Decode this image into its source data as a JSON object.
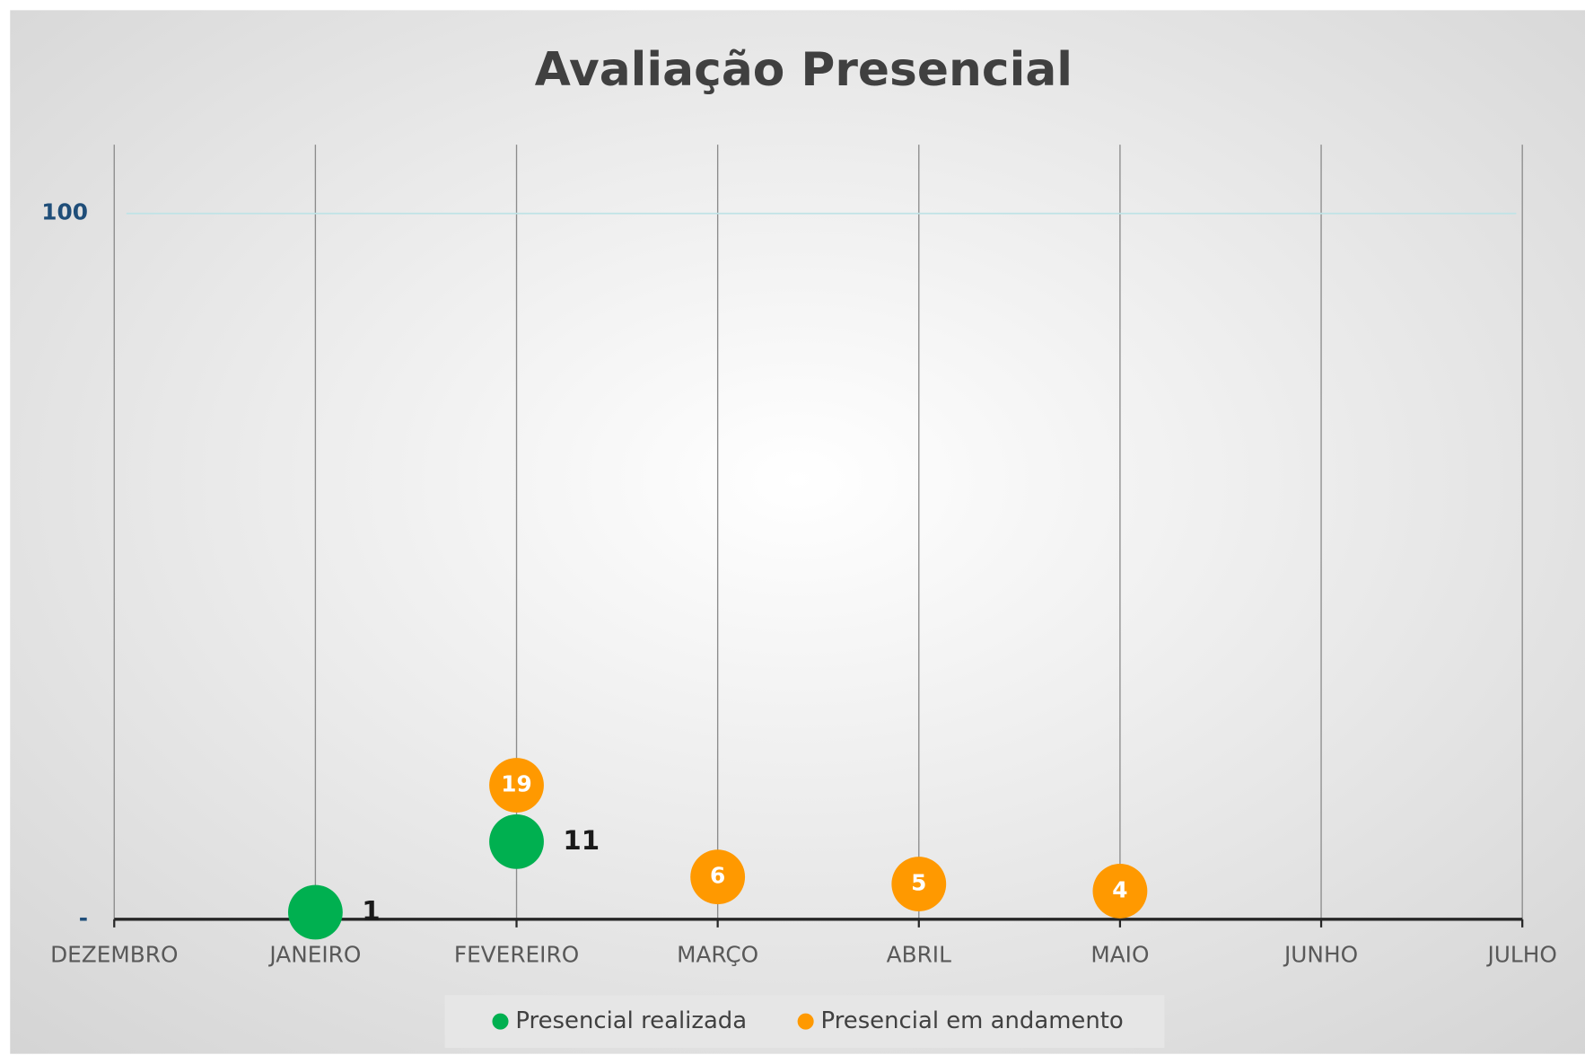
{
  "chart_data": {
    "type": "scatter",
    "title": "Avaliação Presencial",
    "categories": [
      "DEZEMBRO",
      "JANEIRO",
      "FEVEREIRO",
      "MARÇO",
      "ABRIL",
      "MAIO",
      "JUNHO",
      "JULHO"
    ],
    "series": [
      {
        "name": "Presencial realizada",
        "color": "#00b050",
        "values": [
          null,
          1,
          11,
          null,
          null,
          null,
          null,
          null
        ]
      },
      {
        "name": "Presencial em andamento",
        "color": "#ff9900",
        "values": [
          null,
          null,
          19,
          6,
          5,
          4,
          null,
          null
        ]
      }
    ],
    "ylim": [
      0,
      100
    ],
    "yticks": [
      {
        "value": 0,
        "label": "-"
      },
      100
    ],
    "grid": true,
    "legend": "bottom"
  }
}
